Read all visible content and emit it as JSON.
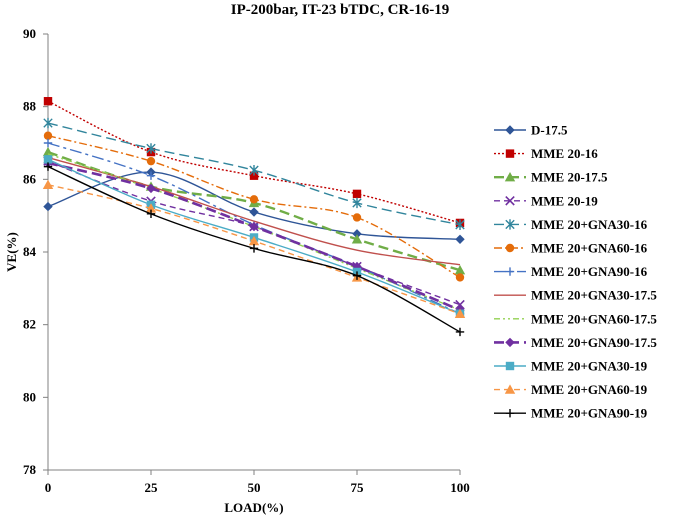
{
  "chart_data": {
    "type": "line",
    "title": "IP-200bar, IT-23  bTDC, CR-16-19",
    "xlabel": "LOAD(%)",
    "ylabel": "VE(%)",
    "x": [
      0,
      25,
      50,
      75,
      100
    ],
    "x_tick_labels": [
      "0",
      "25",
      "50",
      "75",
      "100"
    ],
    "xlim": [
      0,
      100
    ],
    "ylim": [
      78,
      90
    ],
    "y_ticks": [
      78,
      80,
      82,
      84,
      86,
      88,
      90
    ],
    "y_tick_labels": [
      "78",
      "80",
      "82",
      "84",
      "86",
      "88",
      "90"
    ],
    "grid": false,
    "legend_position": "right",
    "series": [
      {
        "name": "D-17.5",
        "values": [
          85.25,
          86.2,
          85.1,
          84.5,
          84.35
        ],
        "color": "#2f5597",
        "dash": "solid",
        "marker": "diamond"
      },
      {
        "name": "MME 20-16",
        "values": [
          88.15,
          86.75,
          86.1,
          85.6,
          84.8
        ],
        "color": "#c00000",
        "dash": "dot",
        "marker": "square"
      },
      {
        "name": "MME 20-17.5",
        "values": [
          86.75,
          85.8,
          85.35,
          84.35,
          83.5
        ],
        "color": "#70ad47",
        "dash": "longdash",
        "marker": "triangle"
      },
      {
        "name": "MME 20-19",
        "values": [
          86.5,
          85.4,
          84.7,
          83.6,
          82.55
        ],
        "color": "#7030a0",
        "dash": "dash",
        "marker": "x"
      },
      {
        "name": "MME 20+GNA30-16",
        "values": [
          87.55,
          86.85,
          86.25,
          85.35,
          84.75
        ],
        "color": "#31859c",
        "dash": "longdash",
        "marker": "star"
      },
      {
        "name": "MME 20+GNA60-16",
        "values": [
          87.2,
          86.5,
          85.45,
          84.95,
          83.3
        ],
        "color": "#e46c0a",
        "dash": "dashdot",
        "marker": "circle"
      },
      {
        "name": "MME 20+GNA90-16",
        "values": [
          87.0,
          86.1,
          84.75,
          83.6,
          82.3
        ],
        "color": "#4472c4",
        "dash": "longdashdot",
        "marker": "plus"
      },
      {
        "name": "MME 20+GNA30-17.5",
        "values": [
          86.6,
          85.8,
          84.85,
          84.05,
          83.65
        ],
        "color": "#c0504d",
        "dash": "solid",
        "marker": "none"
      },
      {
        "name": "MME 20+GNA60-17.5",
        "values": [
          86.7,
          85.75,
          84.7,
          83.55,
          82.4
        ],
        "color": "#92d050",
        "dash": "dashdotdot",
        "marker": "none"
      },
      {
        "name": "MME 20+GNA90-17.5",
        "values": [
          86.45,
          85.75,
          84.7,
          83.6,
          82.4
        ],
        "color": "#7030a0",
        "dash": "longdashthick",
        "marker": "diamond"
      },
      {
        "name": "MME 20+GNA30-19",
        "values": [
          86.55,
          85.3,
          84.4,
          83.45,
          82.3
        ],
        "color": "#4bacc6",
        "dash": "solid",
        "marker": "square"
      },
      {
        "name": "MME 20+GNA60-19",
        "values": [
          85.85,
          85.2,
          84.3,
          83.3,
          82.3
        ],
        "color": "#f79646",
        "dash": "dash",
        "marker": "triangle"
      },
      {
        "name": "MME 20+GNA90-19",
        "values": [
          86.35,
          85.05,
          84.1,
          83.35,
          81.8
        ],
        "color": "#000000",
        "dash": "solid",
        "marker": "plus"
      }
    ]
  }
}
